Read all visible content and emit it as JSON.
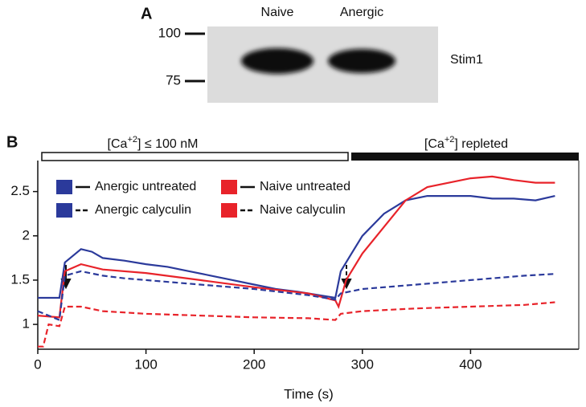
{
  "panel_a": {
    "label": "A",
    "lanes": [
      "Naive",
      "Anergic"
    ],
    "markers": [
      "100",
      "75"
    ],
    "band": "Stim1"
  },
  "chart_data": {
    "type": "line",
    "label": "B",
    "xlabel": "Time (s)",
    "conditions": [
      [
        "[Ca",
        "+2",
        "] ≤ 100 nM"
      ],
      [
        "[Ca",
        "+2",
        "] repleted"
      ]
    ],
    "xlim": [
      0,
      500
    ],
    "xticks": [
      0,
      100,
      200,
      300,
      400
    ],
    "ylim": [
      0.72,
      2.85
    ],
    "yticks": [
      1,
      1.5,
      2,
      2.5
    ],
    "series": [
      {
        "name": "Anergic untreated",
        "color": "#2b3a9b",
        "dashed": false,
        "x": [
          0,
          20,
          25,
          40,
          50,
          60,
          80,
          100,
          120,
          140,
          160,
          180,
          200,
          220,
          240,
          260,
          275,
          280,
          290,
          300,
          320,
          340,
          360,
          380,
          400,
          420,
          440,
          460,
          478
        ],
        "values": [
          1.3,
          1.3,
          1.7,
          1.85,
          1.82,
          1.75,
          1.72,
          1.68,
          1.65,
          1.6,
          1.55,
          1.5,
          1.45,
          1.4,
          1.37,
          1.33,
          1.3,
          1.6,
          1.8,
          2.0,
          2.25,
          2.4,
          2.45,
          2.45,
          2.45,
          2.42,
          2.42,
          2.4,
          2.45
        ]
      },
      {
        "name": "Naive untreated",
        "color": "#e8232a",
        "dashed": false,
        "x": [
          0,
          20,
          25,
          40,
          60,
          100,
          150,
          200,
          250,
          275,
          278,
          285,
          300,
          320,
          340,
          360,
          380,
          400,
          420,
          440,
          460,
          478
        ],
        "values": [
          1.1,
          1.08,
          1.6,
          1.68,
          1.62,
          1.58,
          1.5,
          1.42,
          1.35,
          1.27,
          1.2,
          1.5,
          1.8,
          2.1,
          2.4,
          2.55,
          2.6,
          2.65,
          2.67,
          2.63,
          2.6,
          2.6
        ]
      },
      {
        "name": "Anergic calyculin",
        "color": "#2b3a9b",
        "dashed": true,
        "x": [
          0,
          20,
          25,
          40,
          60,
          80,
          100,
          150,
          200,
          250,
          275,
          280,
          300,
          350,
          400,
          450,
          478
        ],
        "values": [
          1.15,
          1.05,
          1.55,
          1.6,
          1.55,
          1.52,
          1.5,
          1.45,
          1.4,
          1.33,
          1.28,
          1.35,
          1.4,
          1.45,
          1.5,
          1.55,
          1.57
        ]
      },
      {
        "name": "Naive calyculin",
        "color": "#e8232a",
        "dashed": true,
        "x": [
          0,
          5,
          10,
          20,
          25,
          40,
          60,
          100,
          150,
          200,
          250,
          275,
          280,
          300,
          350,
          400,
          450,
          478
        ],
        "values": [
          0.75,
          0.75,
          1.0,
          0.98,
          1.2,
          1.2,
          1.15,
          1.12,
          1.1,
          1.08,
          1.07,
          1.05,
          1.12,
          1.15,
          1.18,
          1.2,
          1.22,
          1.25
        ]
      }
    ]
  }
}
